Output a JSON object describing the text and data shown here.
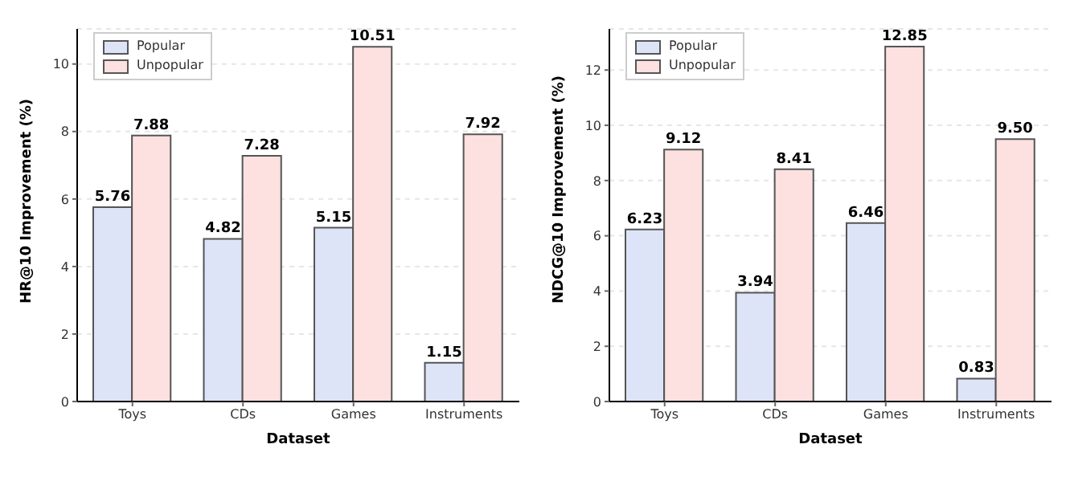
{
  "chart_data": [
    {
      "type": "bar",
      "xlabel": "Dataset",
      "ylabel": "HR@10 Improvement (%)",
      "categories": [
        "Toys",
        "CDs",
        "Games",
        "Instruments"
      ],
      "series": [
        {
          "name": "Popular",
          "color": "#dde4f7",
          "values": [
            5.76,
            4.82,
            5.15,
            1.15
          ],
          "value_labels": [
            "5.76",
            "4.82",
            "5.15",
            "1.15"
          ]
        },
        {
          "name": "Unpopular",
          "color": "#fde0e0",
          "values": [
            7.88,
            7.28,
            10.51,
            7.92
          ],
          "value_labels": [
            "7.88",
            "7.28",
            "10.51",
            "7.92"
          ]
        }
      ],
      "ylim": [
        0,
        11.04
      ],
      "yticks": [
        0,
        2,
        4,
        6,
        8,
        10
      ],
      "grid": "y",
      "legend": "top left"
    },
    {
      "type": "bar",
      "xlabel": "Dataset",
      "ylabel": "NDCG@10 Improvement (%)",
      "categories": [
        "Toys",
        "CDs",
        "Games",
        "Instruments"
      ],
      "series": [
        {
          "name": "Popular",
          "color": "#dde4f7",
          "values": [
            6.23,
            3.94,
            6.46,
            0.83
          ],
          "value_labels": [
            "6.23",
            "3.94",
            "6.46",
            "0.83"
          ]
        },
        {
          "name": "Unpopular",
          "color": "#fde0e0",
          "values": [
            9.12,
            8.41,
            12.85,
            9.5
          ],
          "value_labels": [
            "9.12",
            "8.41",
            "12.85",
            "9.50"
          ]
        }
      ],
      "ylim": [
        0,
        13.49
      ],
      "yticks": [
        0,
        2,
        4,
        6,
        8,
        10,
        12
      ],
      "grid": "y",
      "legend": "top left"
    }
  ]
}
